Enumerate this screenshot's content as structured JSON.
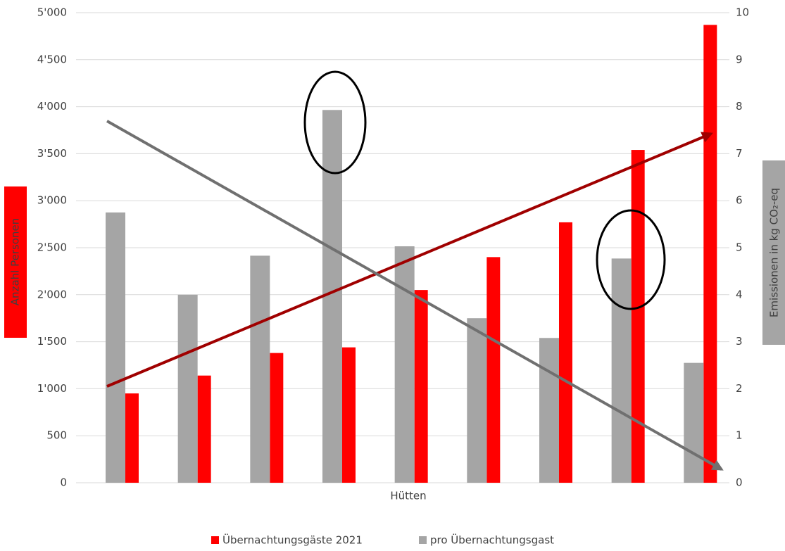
{
  "chart_data": {
    "type": "bar",
    "categories": [
      null,
      null,
      null,
      null,
      null,
      null,
      null,
      null,
      null
    ],
    "xlabel": "Hütten",
    "ylabel": "Anzahl Personen",
    "y2label": "Emissionen in kg CO₂-eq",
    "series": [
      {
        "name": "Übernachtungsgäste 2021",
        "color": "#ff0000",
        "values": [
          950,
          1140,
          1380,
          1440,
          2050,
          2400,
          2770,
          3540,
          4870
        ]
      },
      {
        "name": "pro Übernachtungsgast",
        "color": "#a5a5a5",
        "axis": "y2",
        "values": [
          5.75,
          4.0,
          4.83,
          7.93,
          5.03,
          3.5,
          3.08,
          4.77,
          2.55
        ]
      }
    ],
    "ylim": [
      0,
      5000
    ],
    "yticks": [
      0,
      500,
      {
        "value": 1000,
        "label": "1'000"
      },
      {
        "value": 1500,
        "label": "1'500"
      },
      {
        "value": 2000,
        "label": "2'000"
      },
      {
        "value": 2500,
        "label": "2'500"
      },
      {
        "value": 3000,
        "label": "3'000"
      },
      {
        "value": 3500,
        "label": "3'500"
      },
      {
        "value": 4000,
        "label": "4'000"
      },
      {
        "value": 4500,
        "label": "4'500"
      },
      {
        "value": 5000,
        "label": "5'000"
      }
    ],
    "y2lim": [
      0,
      10
    ],
    "y2ticks": [
      0,
      1,
      2,
      3,
      4,
      5,
      6,
      7,
      8,
      9,
      10
    ],
    "grid": true,
    "legend": "bottom"
  }
}
